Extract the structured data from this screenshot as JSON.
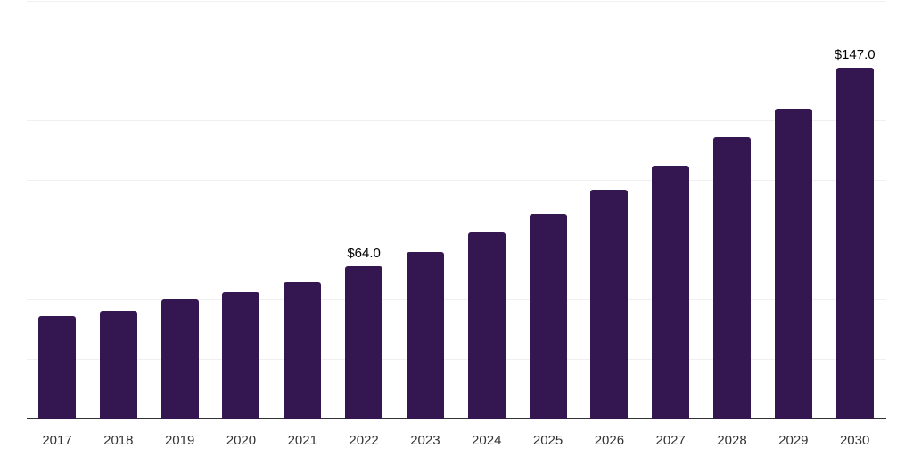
{
  "chart_data": {
    "type": "bar",
    "title": "",
    "xlabel": "",
    "ylabel": "",
    "categories": [
      "2017",
      "2018",
      "2019",
      "2020",
      "2021",
      "2022",
      "2023",
      "2024",
      "2025",
      "2026",
      "2027",
      "2028",
      "2029",
      "2030"
    ],
    "values": [
      43,
      45,
      50,
      53,
      57,
      64,
      70,
      78,
      86,
      96,
      106,
      118,
      130,
      147
    ],
    "data_labels": {
      "2022": "$64.0",
      "2030": "$147.0"
    },
    "ylim": [
      0,
      175
    ],
    "gridline_step": 25,
    "grid": true,
    "y_tick_labels_visible": false,
    "legend_position": "none",
    "colors": {
      "bar": "#341650",
      "background": "#ffffff",
      "gridline": "#f0f0f0",
      "axis_line": "#333333",
      "tick_label": "#333333",
      "data_label": "#000000"
    }
  }
}
